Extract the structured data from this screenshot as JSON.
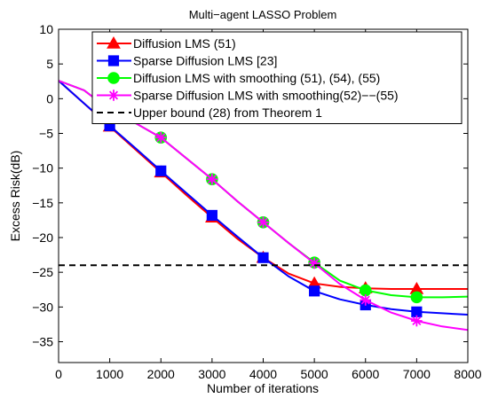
{
  "chart_data": {
    "type": "line",
    "title": "Multi−agent LASSO Problem",
    "xlabel": "Number of iterations",
    "ylabel": "Excess Risk(dB)",
    "xlim": [
      0,
      8000
    ],
    "ylim": [
      -38,
      10
    ],
    "xticks": [
      0,
      1000,
      2000,
      3000,
      4000,
      5000,
      6000,
      7000,
      8000
    ],
    "yticks": [
      10,
      5,
      0,
      -5,
      -10,
      -15,
      -20,
      -25,
      -30,
      -35
    ],
    "grid": false,
    "legend_position": "top",
    "series": [
      {
        "name": "Diffusion LMS (51)",
        "color": "#ff0000",
        "marker": "triangle",
        "x": [
          0,
          500,
          1000,
          1500,
          2000,
          2500,
          3000,
          3500,
          4000,
          4500,
          5000,
          5500,
          6000,
          6500,
          7000,
          7500,
          8000
        ],
        "y": [
          2.6,
          -0.7,
          -4.0,
          -7.3,
          -10.6,
          -13.9,
          -17.1,
          -20.2,
          -22.9,
          -25.2,
          -26.6,
          -27.1,
          -27.3,
          -27.4,
          -27.4,
          -27.4,
          -27.4
        ],
        "markers_x": [
          1000,
          2000,
          3000,
          4000,
          5000,
          6000,
          7000
        ]
      },
      {
        "name": "Sparse Diffusion LMS [23]",
        "color": "#0000ff",
        "marker": "square",
        "x": [
          0,
          500,
          1000,
          1500,
          2000,
          2500,
          3000,
          3500,
          4000,
          4500,
          5000,
          5500,
          6000,
          6500,
          7000,
          7500,
          8000
        ],
        "y": [
          2.6,
          -0.7,
          -3.9,
          -7.1,
          -10.4,
          -13.6,
          -16.8,
          -19.9,
          -22.9,
          -25.6,
          -27.7,
          -28.9,
          -29.7,
          -30.3,
          -30.7,
          -30.9,
          -31.1
        ],
        "markers_x": [
          1000,
          2000,
          3000,
          4000,
          5000,
          6000,
          7000
        ]
      },
      {
        "name": "Diffusion LMS with  smoothing (51), (54), (55)",
        "color": "#00ff00",
        "marker": "circle",
        "x": [
          0,
          500,
          1000,
          1500,
          2000,
          2500,
          3000,
          3500,
          4000,
          4500,
          5000,
          5500,
          6000,
          6500,
          7000,
          7500,
          8000
        ],
        "y": [
          2.6,
          1.2,
          -1.6,
          -3.5,
          -5.6,
          -8.6,
          -11.6,
          -14.8,
          -17.8,
          -20.8,
          -23.6,
          -26.2,
          -27.6,
          -28.3,
          -28.6,
          -28.6,
          -28.5
        ],
        "markers_x": [
          2000,
          3000,
          4000,
          5000,
          6000,
          7000
        ]
      },
      {
        "name": "Sparse Diffusion  LMS with  smoothing(52)−−(55)",
        "color": "#ff00ff",
        "marker": "asterisk",
        "x": [
          0,
          500,
          1000,
          1500,
          2000,
          2500,
          3000,
          3500,
          4000,
          4500,
          5000,
          5500,
          6000,
          6500,
          7000,
          7500,
          8000
        ],
        "y": [
          2.6,
          1.2,
          -1.6,
          -3.5,
          -5.6,
          -8.6,
          -11.6,
          -14.8,
          -17.8,
          -20.8,
          -23.7,
          -26.7,
          -29.0,
          -30.8,
          -32.0,
          -32.8,
          -33.3
        ],
        "markers_x": [
          2000,
          3000,
          4000,
          5000,
          6000,
          7000
        ]
      },
      {
        "name": "Upper bound  (28) from Theorem 1",
        "color": "#000000",
        "style": "dashed",
        "x": [
          0,
          8000
        ],
        "y": [
          -24,
          -24
        ]
      }
    ]
  }
}
